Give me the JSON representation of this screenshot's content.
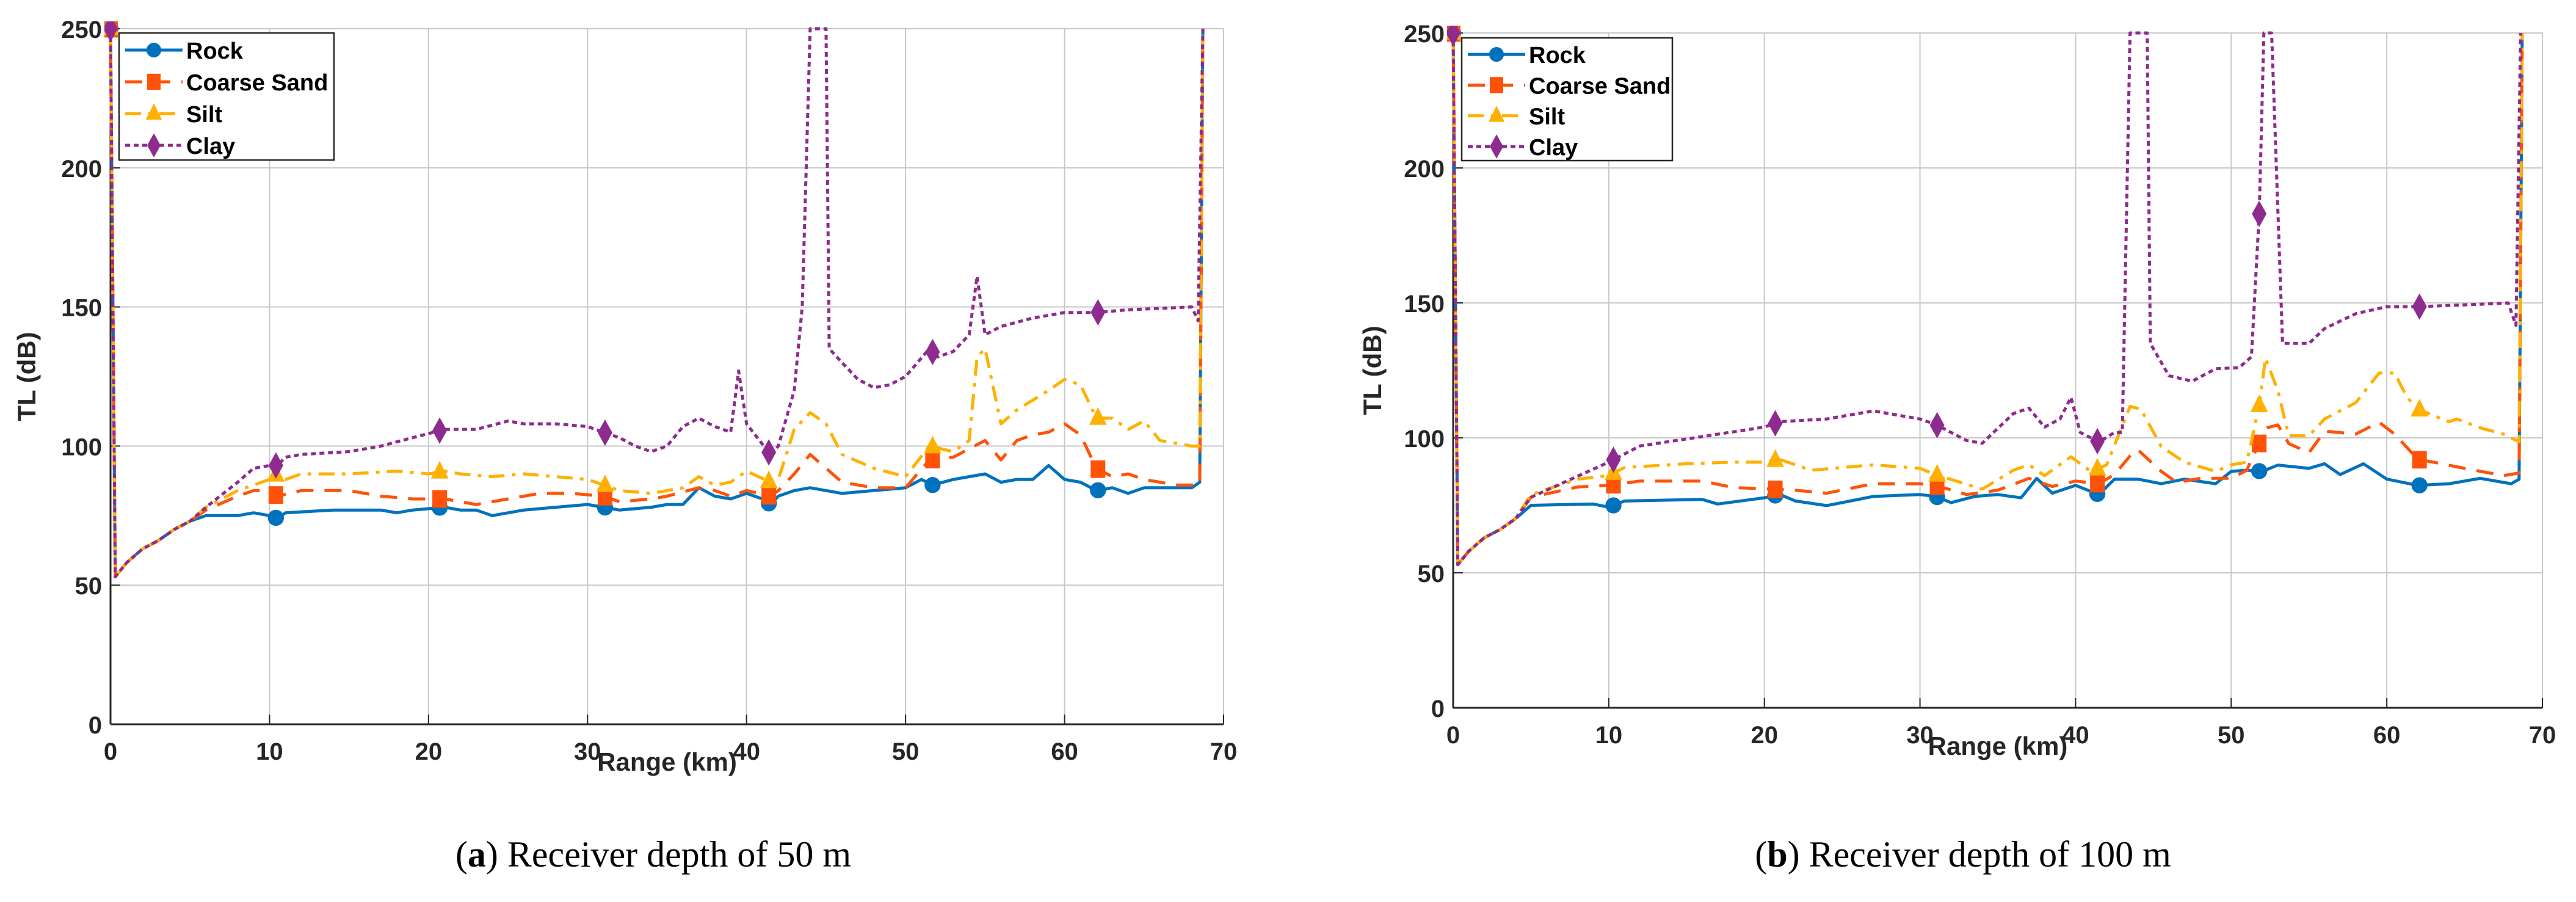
{
  "colors": {
    "Rock": "#0072BD",
    "Coarse Sand": "#FF5209",
    "Silt": "#FFB000",
    "Clay": "#8E2B8E",
    "grid": "#c8c8c8"
  },
  "chart_data": [
    {
      "type": "line",
      "caption_letter": "a",
      "caption_text": "Receiver depth of 50 m",
      "xlabel": "Range (km)",
      "ylabel": "TL (dB)",
      "xlim": [
        0,
        70
      ],
      "ylim": [
        0,
        250
      ],
      "xticks": [
        0,
        10,
        20,
        30,
        40,
        50,
        60,
        70
      ],
      "yticks": [
        0,
        50,
        100,
        150,
        200,
        250
      ],
      "grid": true,
      "legend_position": "top-left",
      "marker_x": [
        0,
        10.4,
        20.7,
        31.1,
        41.4,
        51.7,
        62.1
      ],
      "series": [
        {
          "name": "Rock",
          "style": "solid",
          "marker": "circle",
          "x": [
            0,
            0.3,
            1,
            2,
            3,
            4,
            5,
            6,
            8,
            9,
            10,
            10.5,
            11,
            14,
            17,
            18,
            19,
            21,
            22,
            23,
            24,
            26,
            28,
            30,
            31,
            32,
            34,
            35,
            36,
            37,
            38,
            39,
            40,
            41,
            41.5,
            42,
            43,
            44,
            45,
            46,
            48,
            50,
            51,
            51.7,
            53,
            55,
            56,
            57,
            58,
            59,
            60,
            61,
            62,
            63,
            64,
            65,
            67,
            68,
            68.5,
            68.7
          ],
          "y": [
            250,
            53,
            58,
            63,
            66,
            70,
            73,
            75,
            75,
            76,
            75,
            74,
            76,
            77,
            77,
            76,
            77,
            78,
            77,
            77,
            75,
            77,
            78,
            79,
            78,
            77,
            78,
            79,
            79,
            85,
            82,
            81,
            83,
            81,
            79,
            82,
            84,
            85,
            84,
            83,
            84,
            85,
            88,
            86,
            88,
            90,
            87,
            88,
            88,
            93,
            88,
            87,
            84,
            85,
            83,
            85,
            85,
            85,
            87,
            250
          ]
        },
        {
          "name": "Coarse Sand",
          "style": "dashed",
          "marker": "square",
          "x": [
            0,
            0.3,
            1,
            2,
            3,
            4,
            5,
            6,
            8,
            9,
            10,
            10.5,
            12,
            15,
            17,
            19,
            21,
            23,
            25,
            27,
            29,
            31,
            32,
            34,
            35,
            37,
            38,
            39,
            40,
            41.5,
            42,
            43,
            44,
            45,
            46,
            48,
            50,
            51.5,
            53,
            54,
            55,
            56,
            57,
            58,
            59,
            60,
            61,
            62,
            63,
            64,
            65,
            67,
            68.5,
            68.7
          ],
          "y": [
            250,
            53,
            58,
            63,
            66,
            70,
            73,
            77,
            82,
            84,
            84,
            82,
            84,
            84,
            82,
            81,
            81,
            79,
            81,
            83,
            83,
            82,
            80,
            81,
            82,
            85,
            84,
            82,
            84,
            82,
            84,
            90,
            97,
            92,
            87,
            85,
            85,
            95,
            96,
            99,
            102,
            95,
            102,
            104,
            105,
            108,
            104,
            92,
            89,
            90,
            88,
            86,
            86,
            250
          ]
        },
        {
          "name": "Silt",
          "style": "dashdot",
          "marker": "triangle",
          "x": [
            0,
            0.3,
            1,
            2,
            3,
            4,
            5,
            6,
            8,
            9,
            10,
            10.5,
            11,
            12,
            15,
            18,
            20,
            21,
            22,
            24,
            26,
            28,
            30,
            31,
            32,
            34,
            35,
            36,
            37,
            38,
            39,
            40,
            41.5,
            42,
            43,
            44,
            45,
            46,
            48,
            50,
            51.5,
            53,
            54,
            54.5,
            55,
            56,
            57,
            59,
            60,
            61,
            62,
            63,
            64,
            65,
            66,
            68,
            68.5,
            68.7
          ],
          "y": [
            250,
            53,
            58,
            63,
            66,
            70,
            73,
            78,
            84,
            86,
            88,
            90,
            88,
            90,
            90,
            91,
            90,
            91,
            90,
            89,
            90,
            89,
            88,
            86,
            84,
            83,
            84,
            85,
            89,
            86,
            87,
            91,
            87,
            88,
            106,
            112,
            108,
            97,
            92,
            89,
            100,
            98,
            102,
            132,
            135,
            108,
            113,
            120,
            124,
            122,
            110,
            110,
            106,
            109,
            102,
            100,
            100,
            250
          ]
        },
        {
          "name": "Clay",
          "style": "dotted",
          "marker": "diamond",
          "x": [
            0,
            0.3,
            1,
            2,
            3,
            4,
            5,
            6,
            8,
            9,
            10,
            10.5,
            11,
            12,
            15,
            17,
            19,
            21,
            23,
            25,
            26,
            28,
            30,
            31,
            32,
            33,
            34,
            35,
            36,
            37,
            38,
            39,
            39.5,
            40,
            41.5,
            42,
            43,
            43.5,
            44,
            45,
            45.2,
            46,
            47,
            48,
            49,
            50,
            51.5,
            52,
            53,
            54,
            54.5,
            55,
            56,
            58,
            60,
            62,
            64,
            66,
            68,
            68.4,
            68.7
          ],
          "y": [
            250,
            53,
            58,
            63,
            66,
            70,
            73,
            78,
            87,
            92,
            93,
            93,
            96,
            97,
            98,
            100,
            103,
            106,
            106,
            109,
            108,
            108,
            107,
            105,
            103,
            100,
            98,
            100,
            107,
            110,
            107,
            105,
            127,
            108,
            97,
            100,
            120,
            150,
            250,
            250,
            135,
            130,
            124,
            121,
            122,
            125,
            135,
            132,
            134,
            140,
            161,
            140,
            143,
            146,
            148,
            148,
            149,
            149.5,
            150,
            145,
            250
          ]
        }
      ]
    },
    {
      "type": "line",
      "caption_letter": "b",
      "caption_text": "Receiver depth of 100 m",
      "xlabel": "Range (km)",
      "ylabel": "TL (dB)",
      "xlim": [
        0,
        70
      ],
      "ylim": [
        0,
        250
      ],
      "xticks": [
        0,
        10,
        20,
        30,
        40,
        50,
        60,
        70
      ],
      "yticks": [
        0,
        50,
        100,
        150,
        200,
        250
      ],
      "grid": true,
      "legend_position": "top-left",
      "marker_x": [
        0,
        10.3,
        20.7,
        31.1,
        41.4,
        51.8,
        62.1
      ],
      "series": [
        {
          "name": "Rock",
          "style": "solid",
          "marker": "circle",
          "x": [
            0,
            0.3,
            1,
            2,
            3,
            4,
            5,
            9,
            10,
            11,
            16,
            17,
            20,
            21,
            22,
            24,
            27,
            30,
            31,
            32,
            33.5,
            35,
            36.5,
            37.5,
            38.5,
            40,
            41.5,
            42.5,
            44,
            45.5,
            47,
            49,
            50,
            51,
            52,
            53,
            55,
            56,
            57,
            58.5,
            60,
            62,
            64,
            66,
            68,
            68.5,
            68.7
          ],
          "y": [
            250,
            53,
            58,
            63,
            66,
            70,
            75,
            75.5,
            74.3,
            76.6,
            77.2,
            75.5,
            77.8,
            79,
            76.6,
            74.9,
            78.3,
            79,
            78.3,
            76,
            78.3,
            79,
            77.8,
            85,
            79.5,
            82.4,
            79,
            84.7,
            84.7,
            83,
            84.7,
            83,
            87.6,
            88,
            87.6,
            89.9,
            88.7,
            90.4,
            86.4,
            90.4,
            84.7,
            82.4,
            83,
            85,
            83,
            84.7,
            250
          ]
        },
        {
          "name": "Coarse Sand",
          "style": "dashed",
          "marker": "square",
          "x": [
            0,
            0.3,
            1,
            2,
            3,
            4,
            5,
            8,
            10,
            12,
            16,
            18,
            22,
            24,
            27,
            30,
            31,
            33,
            35,
            37,
            38.5,
            40,
            41.5,
            42.5,
            43.5,
            44,
            45.5,
            46.5,
            48,
            50,
            51,
            51.7,
            52.3,
            53,
            53.7,
            55,
            56,
            58,
            59.5,
            60.5,
            62,
            63,
            65,
            67.5,
            68.5,
            68.7
          ],
          "y": [
            250,
            53,
            58,
            63,
            66,
            70,
            78,
            81.8,
            82.4,
            84,
            84,
            81.6,
            80.6,
            79.5,
            83,
            83,
            82.4,
            79,
            80.6,
            85,
            82,
            84,
            83,
            86.4,
            93.3,
            95.6,
            87.6,
            83.5,
            85,
            85,
            88,
            96.8,
            103.7,
            104.8,
            97.9,
            94.5,
            102.5,
            101.4,
            105.8,
            101.4,
            92,
            91,
            88.7,
            86,
            87,
            250
          ]
        },
        {
          "name": "Silt",
          "style": "dashdot",
          "marker": "triangle",
          "x": [
            0,
            0.3,
            1,
            2,
            3,
            4,
            5,
            8,
            10,
            11,
            15,
            18,
            20,
            21,
            23,
            27,
            30,
            31,
            34,
            36,
            37,
            38,
            39.7,
            41,
            42,
            43.5,
            44.2,
            45.5,
            47,
            49,
            50,
            51,
            51.8,
            52.2,
            53,
            53.7,
            55,
            56,
            58,
            59.5,
            60.5,
            61.3,
            62,
            64,
            64.5,
            66,
            67.5,
            68.5,
            68.7
          ],
          "y": [
            250,
            53,
            58,
            63,
            66,
            70,
            79,
            84.7,
            86,
            89,
            90.4,
            91,
            91,
            92,
            88,
            90,
            88.7,
            86.4,
            81,
            88,
            90,
            86,
            93,
            87.5,
            90,
            111.7,
            110.6,
            96.8,
            91,
            87.6,
            90,
            91,
            112,
            129.6,
            117.5,
            100.8,
            100.8,
            107,
            113,
            124,
            124,
            115,
            110.6,
            106,
            107,
            103.7,
            101.4,
            98.5,
            250
          ]
        },
        {
          "name": "Clay",
          "style": "dotted",
          "marker": "diamond",
          "x": [
            0,
            0.3,
            1,
            2,
            3,
            4,
            5,
            10,
            12,
            15,
            20,
            21,
            24,
            27,
            30,
            31,
            33,
            34,
            36,
            37,
            38,
            39,
            39.7,
            40.3,
            41.5,
            42.5,
            43,
            43.5,
            44.6,
            44.8,
            46,
            47.5,
            49,
            50.5,
            51.3,
            51.8,
            52.1,
            52.6,
            53.3,
            55,
            56,
            58,
            60,
            62,
            66,
            67.8,
            68.3,
            68.6
          ],
          "y": [
            250,
            53,
            58,
            63,
            66,
            70,
            78,
            91,
            97,
            99.6,
            104,
            106,
            107,
            110,
            107,
            105,
            99,
            98,
            109,
            111,
            104,
            107,
            115,
            102,
            98.5,
            102,
            102,
            250,
            250,
            135,
            123,
            121,
            125.6,
            126,
            130,
            183,
            250,
            250,
            135,
            135,
            140.5,
            146,
            148.6,
            148.6,
            149.5,
            150,
            141.7,
            250
          ]
        }
      ]
    }
  ]
}
